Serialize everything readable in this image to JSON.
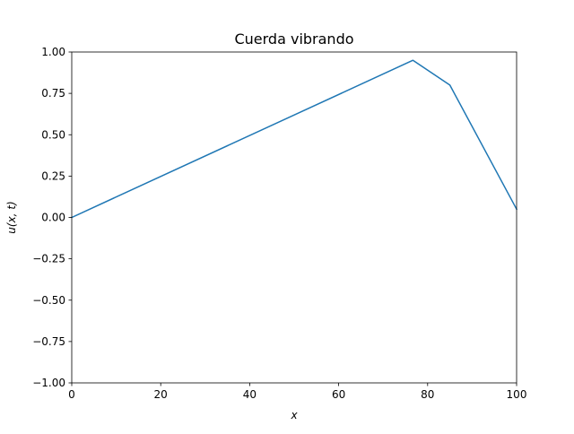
{
  "chart_data": {
    "type": "line",
    "title": "Cuerda vibrando",
    "xlabel": "x",
    "ylabel": "u(x, t)",
    "xlim": [
      0,
      100
    ],
    "ylim": [
      -1.0,
      1.0
    ],
    "grid": false,
    "x_ticks": [
      0,
      20,
      40,
      60,
      80,
      100
    ],
    "x_tick_labels": [
      "0",
      "20",
      "40",
      "60",
      "80",
      "100"
    ],
    "y_ticks": [
      -1.0,
      -0.75,
      -0.5,
      -0.25,
      0.0,
      0.25,
      0.5,
      0.75,
      1.0
    ],
    "y_tick_labels": [
      "−1.00",
      "−0.75",
      "−0.50",
      "−0.25",
      "0.00",
      "0.25",
      "0.50",
      "0.75",
      "1.00"
    ],
    "series": [
      {
        "color": "#1f77b4",
        "x": [
          0,
          76.7,
          85,
          100
        ],
        "y": [
          0.0,
          0.95,
          0.8,
          0.05
        ]
      }
    ]
  }
}
